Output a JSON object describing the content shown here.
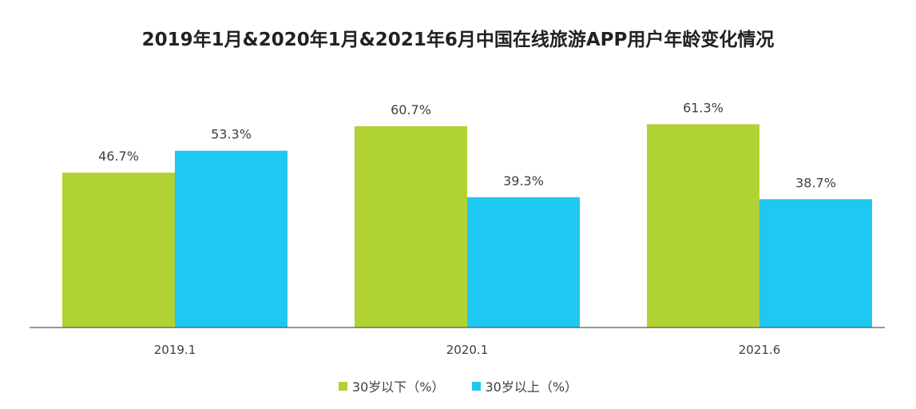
{
  "chart_data": {
    "type": "bar",
    "title": "2019年1月&2020年1月&2021年6月中国在线旅游APP用户年龄变化情况",
    "categories": [
      "2019.1",
      "2020.1",
      "2021.6"
    ],
    "series": [
      {
        "name": "30岁以下（%）",
        "values": [
          46.7,
          60.7,
          61.3
        ],
        "labels": [
          "46.7%",
          "60.7%",
          "61.3%"
        ],
        "color": "#b1d235"
      },
      {
        "name": "30岁以上（%）",
        "values": [
          53.3,
          39.3,
          38.7
        ],
        "labels": [
          "53.3%",
          "39.3%",
          "38.7%"
        ],
        "color": "#1ec8f0"
      }
    ],
    "ylim": [
      0,
      70
    ],
    "grid": false,
    "legend_position": "bottom"
  }
}
